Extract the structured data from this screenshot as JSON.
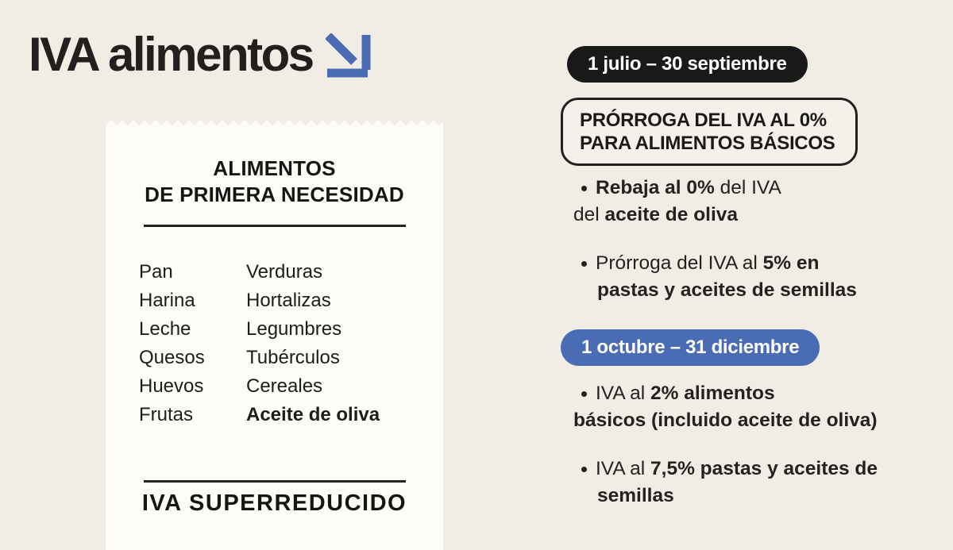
{
  "colors": {
    "background": "#f1ede5",
    "receipt_background": "#fdfcf9",
    "ink": "#1d1c1a",
    "accent_blue": "#4a6cb5",
    "badge_black": "#191918",
    "badge_text": "#ffffff"
  },
  "icons": {
    "title_arrow": "arrow-down-right-icon"
  },
  "header": {
    "title": "IVA alimentos"
  },
  "receipt": {
    "title_line1": "ALIMENTOS",
    "title_line2": "DE PRIMERA NECESIDAD",
    "items": [
      {
        "left": "Pan",
        "right": "Verduras",
        "right_bold": false
      },
      {
        "left": "Harina",
        "right": "Hortalizas",
        "right_bold": false
      },
      {
        "left": "Leche",
        "right": "Legumbres",
        "right_bold": false
      },
      {
        "left": "Quesos",
        "right": "Tubérculos",
        "right_bold": false
      },
      {
        "left": "Huevos",
        "right": "Cereales",
        "right_bold": false
      },
      {
        "left": "Frutas",
        "right": "Aceite de oliva",
        "right_bold": true
      }
    ],
    "footer": "IVA SUPERREDUCIDO"
  },
  "panel": {
    "period1": {
      "label": "1 julio – 30 septiembre"
    },
    "highlight_box": {
      "line1": "PRÓRROGA DEL IVA AL 0%",
      "line2": "PARA ALIMENTOS BÁSICOS"
    },
    "bullets_q3": [
      {
        "line1": [
          {
            "t": "Rebaja al 0%",
            "b": true
          },
          {
            "t": " del IVA",
            "b": false
          }
        ],
        "line2": [
          {
            "t": "del ",
            "b": false
          },
          {
            "t": "aceite de oliva",
            "b": true
          }
        ],
        "wrap": "flush"
      },
      {
        "line1": [
          {
            "t": "Prórroga del IVA al ",
            "b": false
          },
          {
            "t": "5% en",
            "b": true
          }
        ],
        "line2": [
          {
            "t": "pastas y aceites de semillas",
            "b": true
          }
        ],
        "wrap": "indent"
      }
    ],
    "period2": {
      "label": "1 octubre – 31 diciembre"
    },
    "bullets_q4": [
      {
        "line1": [
          {
            "t": "IVA al ",
            "b": false
          },
          {
            "t": "2% alimentos",
            "b": true
          }
        ],
        "line2": [
          {
            "t": "básicos (incluido aceite de oliva)",
            "b": true
          }
        ],
        "wrap": "flush"
      },
      {
        "line1": [
          {
            "t": "IVA al ",
            "b": false
          },
          {
            "t": "7,5% pastas y aceites de",
            "b": true
          }
        ],
        "line2": [
          {
            "t": "semillas",
            "b": true
          }
        ],
        "wrap": "indent"
      }
    ]
  }
}
